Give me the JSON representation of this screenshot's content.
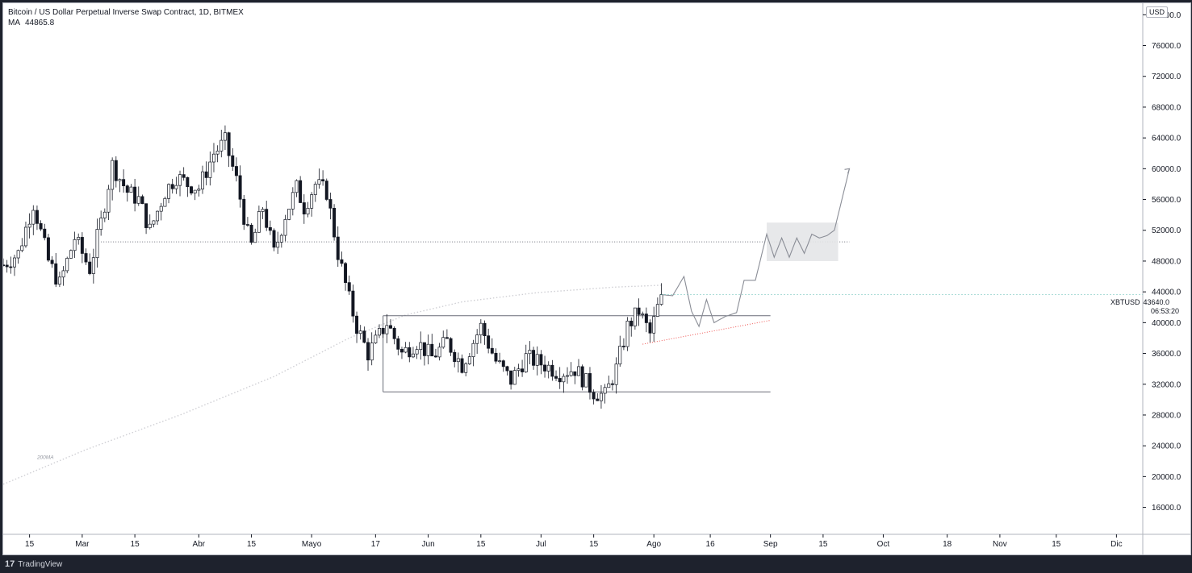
{
  "header": {
    "symbol_line": "Bitcoin / US Dollar Perpetual Inverse Swap Contract, 1D, BITMEX",
    "ma_label": "MA",
    "ma_value": "44865.8"
  },
  "currency": "USD",
  "price_label": {
    "ticker": "XBTUSD",
    "price": "43640.0",
    "countdown": "06:53:20"
  },
  "annotation_200ma": "200MA",
  "footer": {
    "brand": "TradingView",
    "logo": "17"
  },
  "colors": {
    "up": "#26a69a",
    "down": "#ef5350",
    "candle": "#131722",
    "ma": "#cfcfd4",
    "level": "#6a6d78",
    "box": "#e4e5e8"
  },
  "chart_data": {
    "type": "candlestick",
    "title": "Bitcoin / US Dollar Perpetual Inverse Swap Contract, 1D, BITMEX",
    "y_axis": {
      "ticks": [
        "80000.0",
        "76000.0",
        "72000.0",
        "68000.0",
        "64000.0",
        "60000.0",
        "56000.0",
        "52000.0",
        "48000.0",
        "44000.0",
        "40000.0",
        "36000.0",
        "32000.0",
        "28000.0",
        "24000.0",
        "20000.0",
        "16000.0"
      ],
      "range": [
        12500,
        81500
      ]
    },
    "x_axis": {
      "ticks": [
        "15",
        "Mar",
        "15",
        "Abr",
        "15",
        "Mayo",
        "17",
        "Jun",
        "15",
        "Jul",
        "15",
        "Ago",
        "16",
        "Sep",
        "15",
        "Oct",
        "18",
        "Nov",
        "15",
        "Dic"
      ],
      "tick_days": [
        15,
        29,
        43,
        60,
        74,
        90,
        107,
        121,
        135,
        151,
        165,
        181,
        196,
        212,
        226,
        242,
        259,
        273,
        288,
        304
      ],
      "range_days": [
        8,
        311
      ]
    },
    "price_path_days": [
      8,
      12,
      16,
      20,
      23,
      27,
      31,
      34,
      37,
      41,
      44,
      47,
      51,
      54,
      57,
      60,
      64,
      67,
      70,
      73,
      74,
      77,
      80,
      83,
      86,
      88,
      91,
      94,
      97,
      100,
      102,
      105,
      107,
      110,
      114,
      118,
      122,
      126,
      130,
      135,
      139,
      143,
      147,
      152,
      156,
      160,
      165,
      168,
      171,
      174,
      177,
      180,
      183
    ],
    "price_path_values": [
      47500,
      49000,
      55500,
      48000,
      45000,
      51000,
      47000,
      53000,
      60500,
      57000,
      56000,
      52000,
      57000,
      59000,
      58000,
      57500,
      62000,
      63500,
      58500,
      51500,
      50000,
      55000,
      49000,
      54000,
      57500,
      55000,
      58000,
      57000,
      49000,
      43000,
      39500,
      36000,
      37500,
      40000,
      36000,
      37500,
      35500,
      37500,
      34500,
      39500,
      35000,
      32500,
      35500,
      34500,
      33500,
      34000,
      31000,
      30500,
      34000,
      39500,
      41500,
      38500,
      43640
    ],
    "ma200": {
      "label": "200MA",
      "days": [
        8,
        30,
        55,
        80,
        100,
        115,
        130,
        150,
        170,
        183
      ],
      "values": [
        19000,
        23500,
        28000,
        33000,
        38000,
        41000,
        42700,
        43900,
        44600,
        44865.8
      ]
    },
    "levels": {
      "resistance_dotted": 50500,
      "range_top": 40900,
      "range_bottom": 31000,
      "range_days": [
        109,
        184
      ]
    },
    "projection": {
      "days": [
        183,
        186,
        189,
        191,
        193,
        195,
        197,
        200,
        203,
        205,
        208,
        211,
        213,
        215,
        217,
        219,
        221,
        223,
        225,
        227,
        229,
        231,
        233
      ],
      "values": [
        43640,
        43500,
        46000,
        41500,
        39500,
        43000,
        40000,
        40800,
        41300,
        45500,
        45500,
        51500,
        48500,
        51000,
        48500,
        51000,
        49000,
        51500,
        51000,
        51300,
        52000,
        56000,
        60000
      ]
    },
    "projection_zone": {
      "days": [
        211,
        230
      ],
      "values": [
        48000,
        53000
      ]
    },
    "support_trend": {
      "days": [
        178,
        212
      ],
      "values": [
        37200,
        40300
      ]
    },
    "last_price": 43640.0
  }
}
